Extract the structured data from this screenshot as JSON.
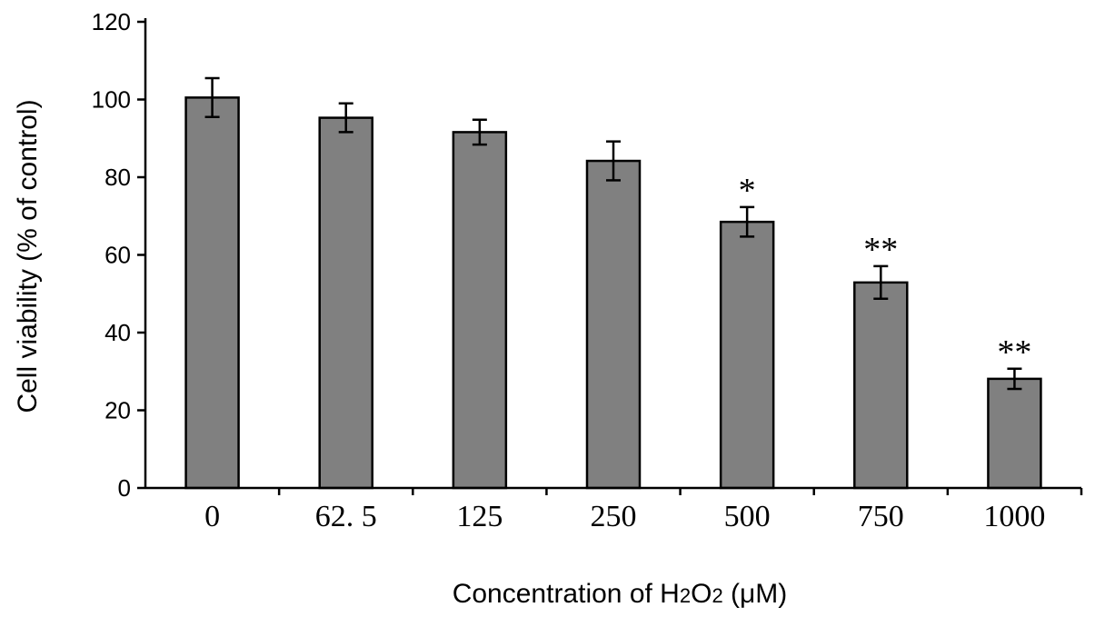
{
  "chart_data": {
    "type": "bar",
    "title": "",
    "xlabel": {
      "prefix": "Concentration of H",
      "sub1": "2",
      "mid": "O",
      "sub2": "2",
      "suffix": " (μM)"
    },
    "ylabel": "Cell viability (% of control)",
    "ylim": [
      0,
      120
    ],
    "yticks": [
      0,
      20,
      40,
      60,
      80,
      100,
      120
    ],
    "categories": [
      "0",
      "62. 5",
      "125",
      "250",
      "500",
      "750",
      "1000"
    ],
    "values": [
      100.5,
      95.3,
      91.6,
      84.2,
      68.5,
      52.9,
      28.1
    ],
    "errors": [
      5.0,
      3.7,
      3.2,
      5.0,
      3.8,
      4.2,
      2.6
    ],
    "significance": [
      "",
      "",
      "",
      "",
      "*",
      "**",
      "**"
    ],
    "bar_color": "#808080",
    "grid": false,
    "legend": "none"
  }
}
